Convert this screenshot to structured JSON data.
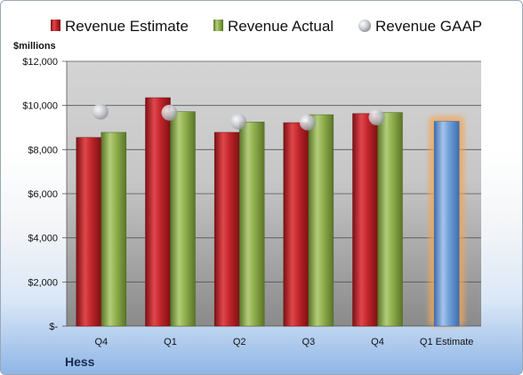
{
  "chart_data": {
    "type": "bar",
    "categories": [
      "Q4",
      "Q1",
      "Q2",
      "Q3",
      "Q4",
      "Q1 Estimate"
    ],
    "series": [
      {
        "name": "Revenue Estimate",
        "kind": "bar",
        "color": "#c0262b",
        "values": [
          8550,
          10350,
          8780,
          9220,
          9630,
          null
        ]
      },
      {
        "name": "Revenue Actual",
        "kind": "bar",
        "color": "#8fae4c",
        "values": [
          8780,
          9720,
          9250,
          9580,
          9680,
          null
        ]
      },
      {
        "name": "Revenue GAAP",
        "kind": "marker",
        "color": "#c8ccd2",
        "values": [
          9720,
          9670,
          9270,
          9230,
          9460,
          null
        ]
      },
      {
        "name": "Q1 Estimate",
        "kind": "highlight-bar",
        "color": "#6e9fd8",
        "glow": "#f2a65a",
        "values": [
          null,
          null,
          null,
          null,
          null,
          9280
        ]
      }
    ],
    "ylabel": "$millions",
    "ylim": [
      0,
      12000
    ],
    "yticks": [
      0,
      2000,
      4000,
      6000,
      8000,
      10000,
      12000
    ],
    "ytick_labels": [
      "$-",
      "$2,000",
      "$4,000",
      "$6,000",
      "$8,000",
      "$10,000",
      "$12,000"
    ],
    "grid": true,
    "legend": "top",
    "company": "Hess"
  }
}
